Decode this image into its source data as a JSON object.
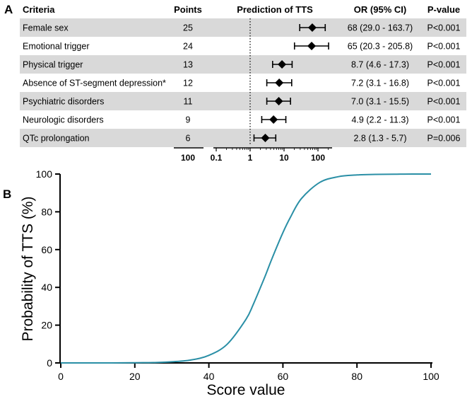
{
  "panel_a": {
    "label": "A",
    "headers": {
      "criteria": "Criteria",
      "points": "Points",
      "prediction": "Prediction of TTS",
      "or": "OR (95% CI)",
      "pvalue": "P-value"
    },
    "rows": [
      {
        "criteria": "Female sex",
        "points": "25",
        "or_text": "68 (29.0 - 163.7)",
        "p": "P<0.001",
        "or": 68,
        "lo": 29.0,
        "hi": 163.7
      },
      {
        "criteria": "Emotional trigger",
        "points": "24",
        "or_text": "65 (20.3 - 205.8)",
        "p": "P<0.001",
        "or": 65,
        "lo": 20.3,
        "hi": 205.8
      },
      {
        "criteria": "Physical trigger",
        "points": "13",
        "or_text": "8.7 (4.6 - 17.3)",
        "p": "P<0.001",
        "or": 8.7,
        "lo": 4.6,
        "hi": 17.3
      },
      {
        "criteria": "Absence of ST-segment depression*",
        "points": "12",
        "or_text": "7.2 (3.1 - 16.8)",
        "p": "P<0.001",
        "or": 7.2,
        "lo": 3.1,
        "hi": 16.8
      },
      {
        "criteria": "Psychiatric disorders",
        "points": "11",
        "or_text": "7.0 (3.1 - 15.5)",
        "p": "P<0.001",
        "or": 7.0,
        "lo": 3.1,
        "hi": 15.5
      },
      {
        "criteria": "Neurologic disorders",
        "points": "9",
        "or_text": "4.9 (2.2 - 11.3)",
        "p": "P<0.001",
        "or": 4.9,
        "lo": 2.2,
        "hi": 11.3
      },
      {
        "criteria": "QTc prolongation",
        "points": "6",
        "or_text": "2.8 (1.3 - 5.7)",
        "p": "P=0.006",
        "or": 2.8,
        "lo": 1.3,
        "hi": 5.7
      }
    ],
    "points_axis_tick": "100",
    "or_axis_ticks": [
      "0.1",
      "1",
      "10",
      "100"
    ],
    "colors": {
      "stripe": "#d9d9d9",
      "marker": "#000000"
    }
  },
  "panel_b": {
    "label": "B"
  },
  "chart_data": [
    {
      "type": "table",
      "title": "Prediction of TTS",
      "columns": [
        "Criteria",
        "Points",
        "OR (95% CI)",
        "P-value"
      ],
      "rows": [
        [
          "Female sex",
          "25",
          "68 (29.0 - 163.7)",
          "P<0.001"
        ],
        [
          "Emotional trigger",
          "24",
          "65 (20.3 - 205.8)",
          "P<0.001"
        ],
        [
          "Physical trigger",
          "13",
          "8.7 (4.6 - 17.3)",
          "P<0.001"
        ],
        [
          "Absence of ST-segment depression*",
          "12",
          "7.2 (3.1 - 16.8)",
          "P<0.001"
        ],
        [
          "Psychiatric disorders",
          "11",
          "7.0 (3.1 - 15.5)",
          "P<0.001"
        ],
        [
          "Neurologic disorders",
          "9",
          "4.9 (2.2 - 11.3)",
          "P<0.001"
        ],
        [
          "QTc prolongation",
          "6",
          "2.8 (1.3 - 5.7)",
          "P=0.006"
        ]
      ],
      "or_axis": {
        "scale": "log",
        "ticks": [
          "0.1",
          "1",
          "10",
          "100"
        ],
        "reference_line": 1
      }
    },
    {
      "type": "line",
      "xlabel": "Score value",
      "ylabel": "Probability of TTS (%)",
      "xlim": [
        0,
        100
      ],
      "ylim": [
        0,
        100
      ],
      "xticks": [
        "0",
        "20",
        "40",
        "60",
        "80",
        "100"
      ],
      "yticks": [
        "0",
        "20",
        "40",
        "60",
        "80",
        "100"
      ],
      "grid": false,
      "line_color": "#2a8fa6",
      "series": [
        {
          "x": [
            0,
            10,
            20,
            25,
            30,
            35,
            40,
            45,
            50,
            52,
            55,
            57,
            60,
            62,
            65,
            70,
            75,
            80,
            85,
            90,
            95,
            100
          ],
          "y": [
            0.0,
            0.0,
            0.1,
            0.2,
            0.6,
            1.5,
            4.0,
            10.0,
            23.0,
            31.0,
            45.0,
            55.0,
            69.0,
            77.0,
            87.0,
            95.6,
            98.6,
            99.5,
            99.8,
            99.9,
            100.0,
            100.0
          ]
        }
      ]
    }
  ]
}
